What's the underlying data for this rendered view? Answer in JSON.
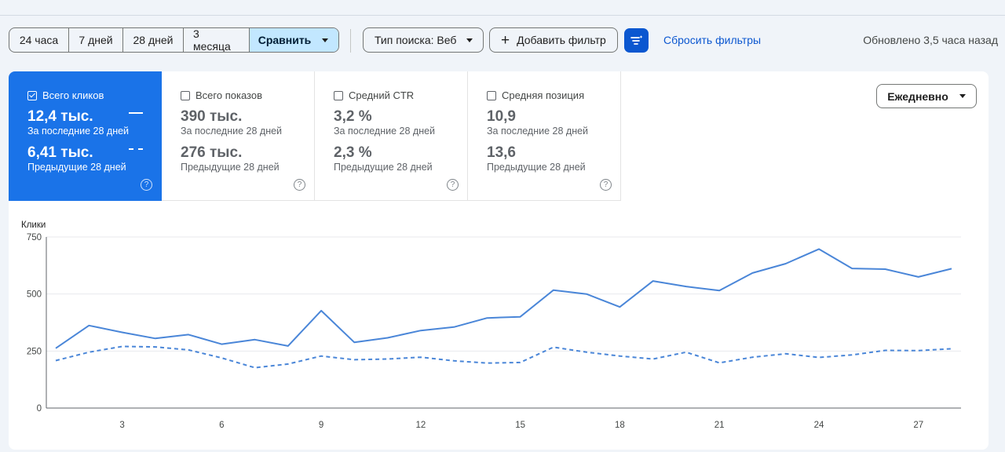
{
  "toolbar": {
    "ranges": [
      "24 часа",
      "7 дней",
      "28 дней",
      "3 месяца"
    ],
    "compare_label": "Сравнить",
    "search_type_label": "Тип поиска: Веб",
    "add_filter_label": "Добавить фильтр",
    "reset_filters_label": "Сбросить фильтры",
    "updated_label": "Обновлено 3,5 часа назад"
  },
  "metrics": [
    {
      "label": "Всего кликов",
      "checked": true,
      "value": "12,4 тыс.",
      "value_sub": "За последние 28 дней",
      "prev": "6,41 тыс.",
      "prev_sub": "Предыдущие 28 дней"
    },
    {
      "label": "Всего показов",
      "checked": false,
      "value": "390 тыс.",
      "value_sub": "За последние 28 дней",
      "prev": "276 тыс.",
      "prev_sub": "Предыдущие 28 дней"
    },
    {
      "label": "Средний CTR",
      "checked": false,
      "value": "3,2 %",
      "value_sub": "За последние 28 дней",
      "prev": "2,3 %",
      "prev_sub": "Предыдущие 28 дней"
    },
    {
      "label": "Средняя позиция",
      "checked": false,
      "value": "10,9",
      "value_sub": "За последние 28 дней",
      "prev": "13,6",
      "prev_sub": "Предыдущие 28 дней"
    }
  ],
  "help_glyph": "?",
  "granularity_label": "Ежедневно",
  "colors": {
    "accent": "#1a73e8",
    "line": "#4a86d8",
    "button": "#0b57d0"
  },
  "chart_data": {
    "type": "line",
    "ylabel": "Клики",
    "ylim": [
      0,
      750
    ],
    "yticks": [
      0,
      250,
      500,
      750
    ],
    "xticks": [
      3,
      6,
      9,
      12,
      15,
      18,
      21,
      24,
      27
    ],
    "x": [
      1,
      2,
      3,
      4,
      5,
      6,
      7,
      8,
      9,
      10,
      11,
      12,
      13,
      14,
      15,
      16,
      17,
      18,
      19,
      20,
      21,
      22,
      23,
      24,
      25,
      26,
      27,
      28
    ],
    "series": [
      {
        "style": "solid",
        "values": [
          262,
          362,
          332,
          305,
          322,
          280,
          300,
          272,
          427,
          288,
          308,
          340,
          355,
          395,
          400,
          517,
          500,
          443,
          557,
          533,
          515,
          592,
          633,
          697,
          612,
          609,
          575,
          611
        ]
      },
      {
        "style": "dashed",
        "values": [
          208,
          245,
          270,
          268,
          255,
          220,
          177,
          193,
          228,
          212,
          215,
          223,
          207,
          197,
          200,
          267,
          245,
          228,
          215,
          245,
          198,
          223,
          238,
          222,
          233,
          253,
          252,
          260
        ]
      }
    ]
  }
}
